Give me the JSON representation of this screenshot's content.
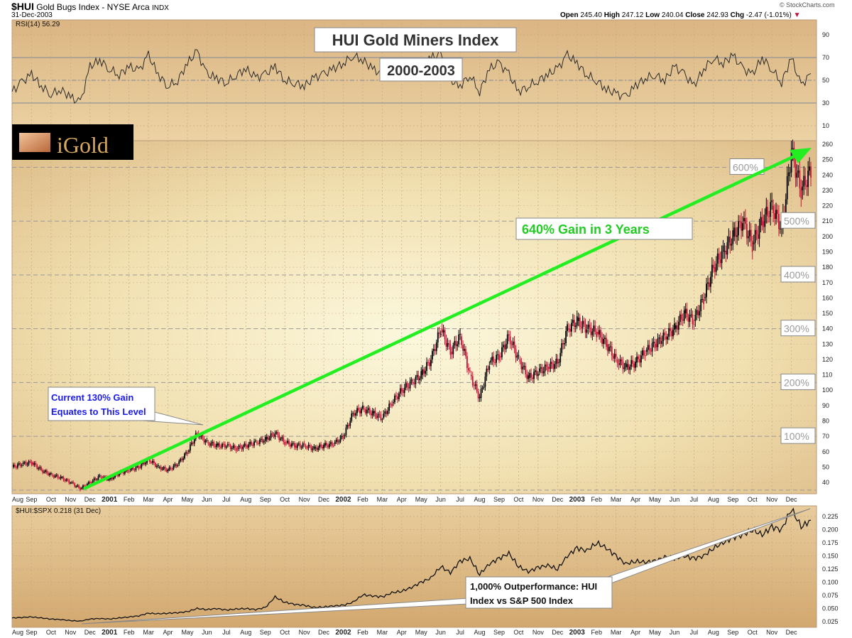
{
  "header": {
    "symbol": "$HUI",
    "name": "Gold Bugs Index - NYSE Arca",
    "exchange": "INDX",
    "date": "31-Dec-2003",
    "watermark": "© StockCharts.com",
    "open_label": "Open",
    "open": "245.40",
    "high_label": "High",
    "high": "247.12",
    "low_label": "Low",
    "low": "240.04",
    "close_label": "Close",
    "close": "242.93",
    "chg_label": "Chg",
    "chg": "-2.47 (-1.01%)",
    "down_color": "#c0103a"
  },
  "logo": {
    "text": "iGold"
  },
  "chart_data": [
    {
      "type": "line",
      "panel": "rsi",
      "legend": "RSI(14) 56.29",
      "title": "HUI Gold Miners Index",
      "subtitle": "2000-2003",
      "x_start": "Aug 2000",
      "x_step": "half-month",
      "ylim": [
        10,
        90
      ],
      "yticks": [
        "90",
        "70",
        "50",
        "30",
        "10"
      ],
      "levels": [
        70,
        50,
        30
      ],
      "values": [
        40,
        48,
        55,
        45,
        38,
        42,
        35,
        30,
        62,
        68,
        60,
        55,
        62,
        58,
        72,
        55,
        45,
        50,
        65,
        75,
        55,
        52,
        48,
        55,
        60,
        52,
        55,
        62,
        50,
        48,
        45,
        52,
        55,
        60,
        65,
        72,
        68,
        60,
        55,
        62,
        65,
        60,
        62,
        70,
        72,
        50,
        45,
        55,
        40,
        60,
        65,
        55,
        40,
        45,
        50,
        55,
        60,
        72,
        65,
        55,
        50,
        42,
        38,
        35,
        45,
        52,
        55,
        50,
        62,
        55,
        45,
        60,
        70,
        65,
        72,
        60,
        55,
        70,
        60,
        48,
        70,
        45,
        56
      ]
    },
    {
      "type": "candlestick",
      "panel": "price",
      "x_start": "Aug 2000",
      "x_step": "half-month",
      "ylim": [
        33,
        263
      ],
      "yticks": [
        "260",
        "250",
        "240",
        "230",
        "220",
        "210",
        "200",
        "190",
        "180",
        "170",
        "160",
        "150",
        "140",
        "130",
        "120",
        "110",
        "100",
        "90",
        "80",
        "70",
        "60",
        "50",
        "40"
      ],
      "closes": [
        50,
        52,
        53,
        48,
        45,
        43,
        40,
        36,
        40,
        44,
        42,
        46,
        48,
        50,
        55,
        50,
        48,
        52,
        60,
        72,
        66,
        64,
        64,
        62,
        64,
        66,
        68,
        72,
        66,
        64,
        64,
        62,
        64,
        65,
        70,
        85,
        88,
        85,
        82,
        92,
        100,
        105,
        110,
        120,
        140,
        125,
        135,
        110,
        95,
        118,
        122,
        135,
        120,
        108,
        112,
        115,
        118,
        140,
        145,
        140,
        138,
        130,
        120,
        115,
        118,
        125,
        130,
        135,
        140,
        150,
        145,
        160,
        180,
        190,
        200,
        210,
        195,
        210,
        220,
        205,
        255,
        230,
        243
      ],
      "gain_levels": [
        {
          "label": "100%",
          "value": 70
        },
        {
          "label": "200%",
          "value": 105
        },
        {
          "label": "300%",
          "value": 140
        },
        {
          "label": "400%",
          "value": 175
        },
        {
          "label": "500%",
          "value": 210
        },
        {
          "label": "600%",
          "value": 245
        }
      ],
      "annotations": {
        "trend_arrow": {
          "from": [
            "Nov 2000",
            36
          ],
          "to": [
            "Dec 2003",
            258
          ],
          "color": "#22ee22"
        },
        "trend_label": "640% Gain in 3 Years",
        "callout_line1": "Current 130% Gain",
        "callout_line2": "Equates to This Level"
      }
    },
    {
      "type": "line",
      "panel": "ratio",
      "legend": "$HUI:$SPX 0.218 (31 Dec)",
      "x_start": "Aug 2000",
      "x_step": "half-month",
      "ylim": [
        0.015,
        0.245
      ],
      "yticks": [
        "0.225",
        "0.200",
        "0.175",
        "0.150",
        "0.125",
        "0.100",
        "0.075",
        "0.050",
        "0.025"
      ],
      "values": [
        0.032,
        0.033,
        0.034,
        0.032,
        0.03,
        0.029,
        0.027,
        0.026,
        0.03,
        0.031,
        0.03,
        0.032,
        0.034,
        0.036,
        0.041,
        0.04,
        0.041,
        0.042,
        0.044,
        0.05,
        0.048,
        0.05,
        0.047,
        0.049,
        0.05,
        0.048,
        0.052,
        0.072,
        0.062,
        0.058,
        0.056,
        0.052,
        0.053,
        0.055,
        0.056,
        0.062,
        0.076,
        0.074,
        0.072,
        0.08,
        0.083,
        0.09,
        0.1,
        0.108,
        0.13,
        0.118,
        0.14,
        0.145,
        0.115,
        0.135,
        0.145,
        0.155,
        0.13,
        0.12,
        0.128,
        0.132,
        0.125,
        0.15,
        0.165,
        0.16,
        0.175,
        0.165,
        0.15,
        0.135,
        0.14,
        0.138,
        0.14,
        0.148,
        0.145,
        0.15,
        0.145,
        0.15,
        0.165,
        0.175,
        0.185,
        0.19,
        0.2,
        0.19,
        0.205,
        0.2,
        0.24,
        0.205,
        0.218
      ],
      "callout_line1": "1,000% Outperformance: HUI",
      "callout_line2": "Index vs S&P 500 Index"
    }
  ],
  "x_axis": {
    "labels": [
      "Aug",
      "Sep",
      "Oct",
      "Nov",
      "Dec",
      "2001",
      "Feb",
      "Mar",
      "Apr",
      "May",
      "Jun",
      "Jul",
      "Aug",
      "Sep",
      "Oct",
      "Nov",
      "Dec",
      "2002",
      "Feb",
      "Mar",
      "Apr",
      "May",
      "Jun",
      "Jul",
      "Aug",
      "Sep",
      "Oct",
      "Nov",
      "Dec",
      "2003",
      "Feb",
      "Mar",
      "Apr",
      "May",
      "Jun",
      "Jul",
      "Aug",
      "Sep",
      "Oct",
      "Nov",
      "Dec"
    ]
  }
}
